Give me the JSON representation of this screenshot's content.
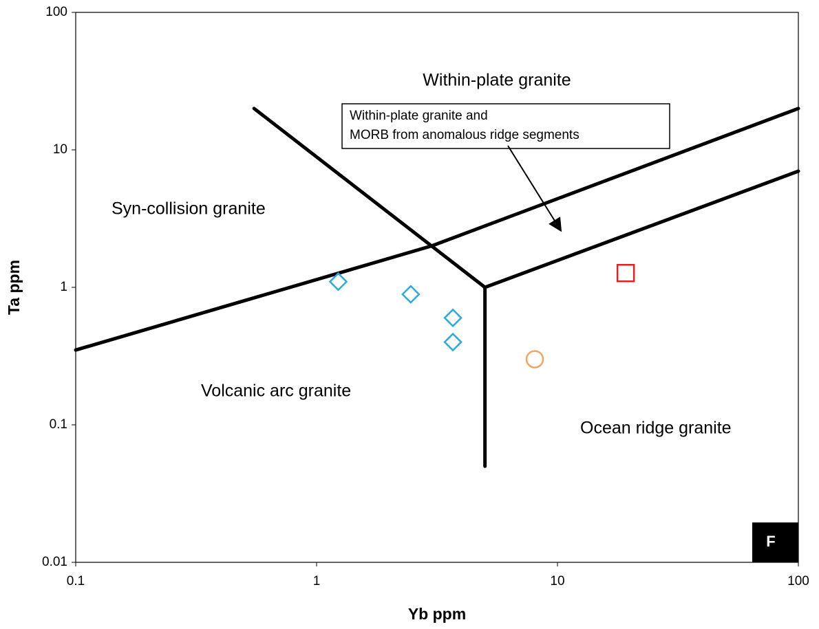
{
  "chart_data": {
    "type": "scatter",
    "xlabel": "Yb ppm",
    "ylabel": "Ta ppm",
    "xscale": "log",
    "yscale": "log",
    "xlim": [
      0.1,
      100
    ],
    "ylim": [
      0.01,
      100
    ],
    "xticks": [
      0.1,
      1,
      10,
      100
    ],
    "yticks": [
      0.01,
      0.1,
      1,
      10,
      100
    ],
    "annotations": [
      "Within-plate granite",
      "Within-plate granite and",
      "MORB from anomalous ridge segments",
      "Syn-collision granite",
      "Volcanic arc granite",
      "Ocean ridge granite"
    ],
    "panel_label": "F",
    "boundaries": [
      {
        "color": "#000000",
        "x": [
          0.1,
          3,
          100
        ],
        "values": [
          0.35,
          2,
          20
        ]
      },
      {
        "color": "#000000",
        "x": [
          0.55,
          5
        ],
        "values": [
          20,
          1
        ]
      },
      {
        "color": "#000000",
        "x": [
          5,
          5
        ],
        "values": [
          1,
          0.05
        ]
      },
      {
        "color": "#000000",
        "x": [
          5,
          100
        ],
        "values": [
          1,
          7
        ]
      }
    ],
    "series": [
      {
        "marker": "diamond",
        "color": "#29abe2",
        "x": [
          1.23,
          2.46,
          3.68,
          3.68
        ],
        "values": [
          1.1,
          0.89,
          0.6,
          0.4
        ]
      },
      {
        "marker": "circle",
        "color": "#f4a460",
        "x": [
          8.05
        ],
        "values": [
          0.3
        ]
      },
      {
        "marker": "square",
        "color": "#e02020",
        "x": [
          19.2
        ],
        "values": [
          1.27
        ]
      }
    ]
  }
}
